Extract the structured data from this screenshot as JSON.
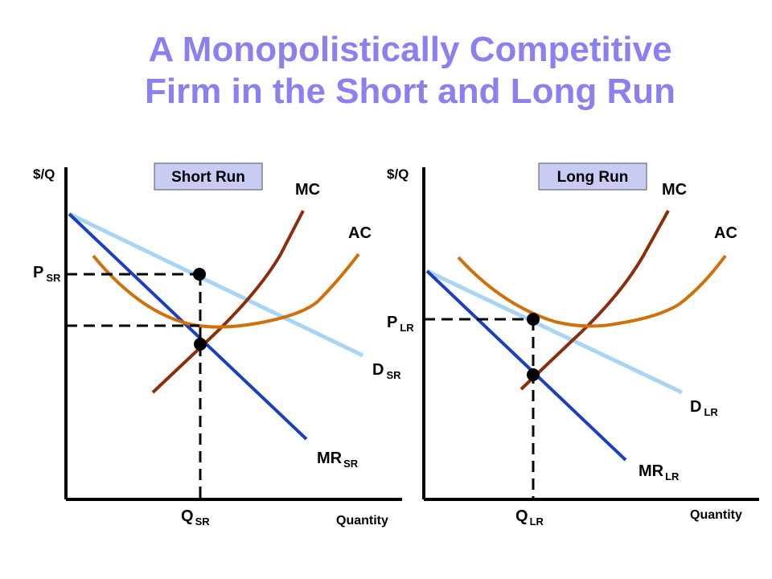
{
  "title": {
    "line1": "A Monopolistically Competitive",
    "line2": "Firm in the Short and Long Run"
  },
  "colors": {
    "title": "#8a80f0",
    "demand": "#a8d4f5",
    "marginal_revenue": "#1b3fbf",
    "marginal_cost": "#8b2e0c",
    "average_cost": "#d0700a",
    "label_box": "#c8ccf5",
    "axes": "#000000"
  },
  "short_run": {
    "box_label": "Short Run",
    "y_axis_label": "$/Q",
    "x_axis_label": "Quantity",
    "mc_label": "MC",
    "ac_label": "AC",
    "price_label": {
      "main": "P",
      "sub": "SR"
    },
    "quantity_label": {
      "main": "Q",
      "sub": "SR"
    },
    "demand_label": {
      "main": "D",
      "sub": "SR"
    },
    "mr_label": {
      "main": "MR",
      "sub": "SR"
    }
  },
  "long_run": {
    "box_label": "Long Run",
    "y_axis_label": "$/Q",
    "x_axis_label": "Quantity",
    "mc_label": "MC",
    "ac_label": "AC",
    "price_label": {
      "main": "P",
      "sub": "LR"
    },
    "quantity_label": {
      "main": "Q",
      "sub": "LR"
    },
    "demand_label": {
      "main": "D",
      "sub": "LR"
    },
    "mr_label": {
      "main": "MR",
      "sub": "LR"
    }
  }
}
